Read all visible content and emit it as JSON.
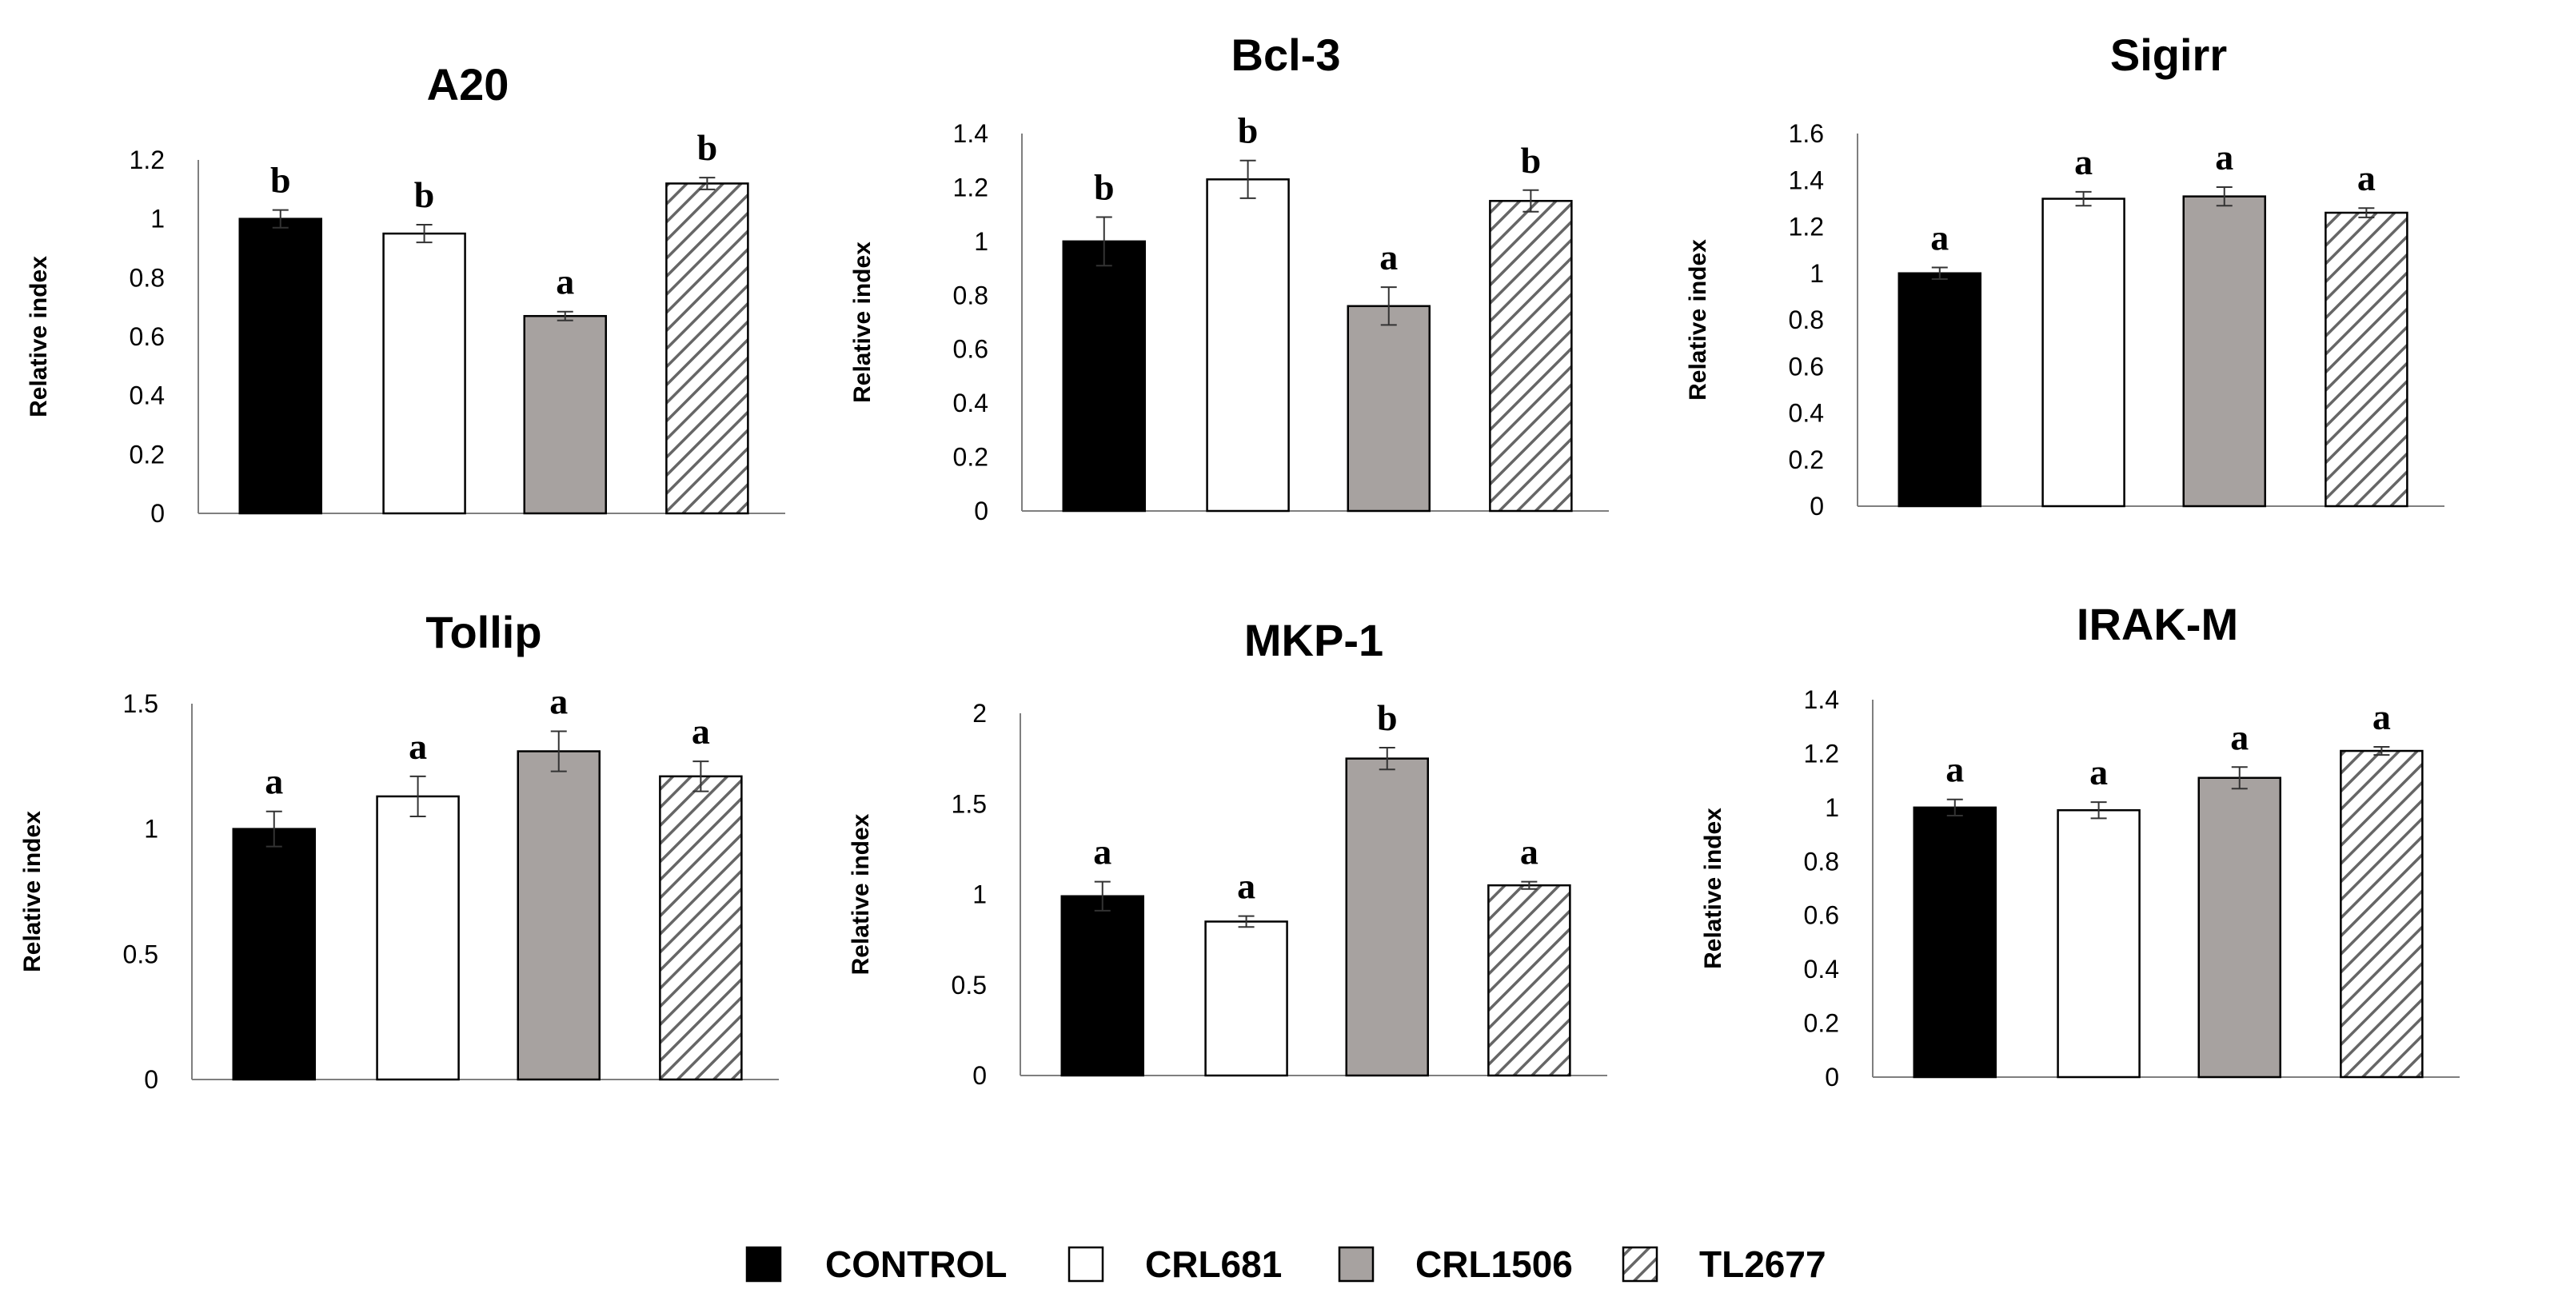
{
  "chart_data": [
    {
      "type": "bar",
      "title": "A20",
      "ylabel": "Relative index",
      "ylim": [
        0,
        1.2
      ],
      "ticks": [
        "0",
        "0.2",
        "0.4",
        "0.6",
        "0.8",
        "1",
        "1.2"
      ],
      "categories": [
        "CONTROL",
        "CRL681",
        "CRL1506",
        "TL2677"
      ],
      "values": [
        1.0,
        0.95,
        0.67,
        1.12
      ],
      "errors": [
        0.03,
        0.03,
        0.015,
        0.02
      ],
      "significance": [
        "b",
        "b",
        "a",
        "b"
      ]
    },
    {
      "type": "bar",
      "title": "Bcl-3",
      "ylabel": "Relative index",
      "ylim": [
        0,
        1.4
      ],
      "ticks": [
        "0",
        "0.2",
        "0.4",
        "0.6",
        "0.8",
        "1",
        "1.2",
        "1.4"
      ],
      "categories": [
        "CONTROL",
        "CRL681",
        "CRL1506",
        "TL2677"
      ],
      "values": [
        1.0,
        1.23,
        0.76,
        1.15
      ],
      "errors": [
        0.09,
        0.07,
        0.07,
        0.04
      ],
      "significance": [
        "b",
        "b",
        "a",
        "b"
      ]
    },
    {
      "type": "bar",
      "title": "Sigirr",
      "ylabel": "Relative index",
      "ylim": [
        0,
        1.6
      ],
      "ticks": [
        "0",
        "0.2",
        "0.4",
        "0.6",
        "0.8",
        "1",
        "1.2",
        "1.4",
        "1.6"
      ],
      "categories": [
        "CONTROL",
        "CRL681",
        "CRL1506",
        "TL2677"
      ],
      "values": [
        1.0,
        1.32,
        1.33,
        1.26
      ],
      "errors": [
        0.025,
        0.03,
        0.04,
        0.02
      ],
      "significance": [
        "a",
        "a",
        "a",
        "a"
      ]
    },
    {
      "type": "bar",
      "title": "Tollip",
      "ylabel": "Relative index",
      "ylim": [
        0,
        1.5
      ],
      "ticks": [
        "0",
        "0.5",
        "1",
        "1.5"
      ],
      "categories": [
        "CONTROL",
        "CRL681",
        "CRL1506",
        "TL2677"
      ],
      "values": [
        1.0,
        1.13,
        1.31,
        1.21
      ],
      "errors": [
        0.07,
        0.08,
        0.08,
        0.06
      ],
      "significance": [
        "a",
        "a",
        "a",
        "a"
      ]
    },
    {
      "type": "bar",
      "title": "MKP-1",
      "ylabel": "Relative index",
      "ylim": [
        0,
        2
      ],
      "ticks": [
        "0",
        "0.5",
        "1",
        "1.5",
        "2"
      ],
      "categories": [
        "CONTROL",
        "CRL681",
        "CRL1506",
        "TL2677"
      ],
      "values": [
        0.99,
        0.85,
        1.75,
        1.05
      ],
      "errors": [
        0.08,
        0.03,
        0.06,
        0.02
      ],
      "significance": [
        "a",
        "a",
        "b",
        "a"
      ]
    },
    {
      "type": "bar",
      "title": "IRAK-M",
      "ylabel": "Relative index",
      "ylim": [
        0,
        1.4
      ],
      "ticks": [
        "0",
        "0.2",
        "0.4",
        "0.6",
        "0.8",
        "1",
        "1.2",
        "1.4"
      ],
      "categories": [
        "CONTROL",
        "CRL681",
        "CRL1506",
        "TL2677"
      ],
      "values": [
        1.0,
        0.99,
        1.11,
        1.21
      ],
      "errors": [
        0.03,
        0.03,
        0.04,
        0.015
      ],
      "significance": [
        "a",
        "a",
        "a",
        "a"
      ]
    }
  ],
  "legend": [
    {
      "label": "CONTROL",
      "style": "solid-black"
    },
    {
      "label": "CRL681",
      "style": "white"
    },
    {
      "label": "CRL1506",
      "style": "gray"
    },
    {
      "label": "TL2677",
      "style": "hatched"
    }
  ],
  "colors": {
    "control": "#000000",
    "crl681": "#ffffff",
    "crl1506": "#a7a2a0",
    "axis": "#7f7f7f"
  }
}
